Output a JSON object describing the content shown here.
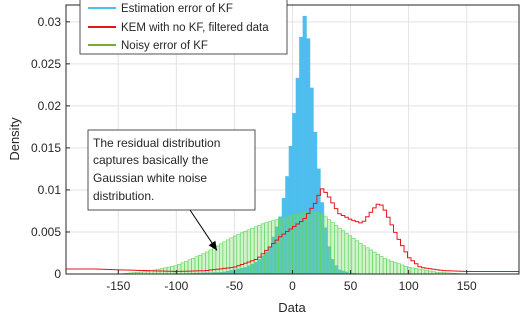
{
  "chart_data": {
    "type": "bar",
    "xlabel": "Data",
    "ylabel": "Density",
    "xlim": [
      -195,
      195
    ],
    "ylim": [
      0,
      0.032
    ],
    "xticks": [
      -150,
      -100,
      -50,
      0,
      50,
      100,
      150
    ],
    "yticks": [
      0,
      0.005,
      0.01,
      0.015,
      0.02,
      0.025,
      0.03
    ],
    "ytick_labels": [
      "0",
      "0.005",
      "0.01",
      "0.015",
      "0.02",
      "0.025",
      "0.03"
    ],
    "grid": true,
    "legend_position": "top-left",
    "annotation": {
      "lines": [
        "The residual distribution",
        "captures basically the",
        "Gaussian white noise",
        "distribution."
      ],
      "arrow_target": [
        -65,
        0.0028
      ]
    },
    "series": [
      {
        "name": "Estimation error of KF",
        "style": "filled-bars",
        "color": "#4dbeee",
        "edge": "#4dbeee",
        "bin_width": 3,
        "points": [
          [
            -195,
            0
          ],
          [
            -100,
            0
          ],
          [
            -60,
            0.0002
          ],
          [
            -40,
            0.0008
          ],
          [
            -30,
            0.0015
          ],
          [
            -20,
            0.003
          ],
          [
            -10,
            0.007
          ],
          [
            -5,
            0.011
          ],
          [
            0,
            0.017
          ],
          [
            5,
            0.024
          ],
          [
            8,
            0.029
          ],
          [
            10,
            0.031
          ],
          [
            13,
            0.029
          ],
          [
            16,
            0.023
          ],
          [
            20,
            0.016
          ],
          [
            25,
            0.009
          ],
          [
            30,
            0.004
          ],
          [
            35,
            0.0015
          ],
          [
            40,
            0.0005
          ],
          [
            50,
            0.0001
          ],
          [
            60,
            0
          ],
          [
            195,
            0
          ]
        ]
      },
      {
        "name": "Noisy error of KF",
        "style": "bars",
        "color": "#77ac30",
        "edge": "#5cd65c",
        "fill": "rgba(120,222,100,0.35)",
        "bin_width": 3,
        "points": [
          [
            -195,
            0
          ],
          [
            -150,
            0
          ],
          [
            -125,
            0.0003
          ],
          [
            -100,
            0.001
          ],
          [
            -75,
            0.0025
          ],
          [
            -50,
            0.0045
          ],
          [
            -25,
            0.006
          ],
          [
            0,
            0.007
          ],
          [
            15,
            0.0075
          ],
          [
            25,
            0.0072
          ],
          [
            40,
            0.0055
          ],
          [
            60,
            0.0035
          ],
          [
            80,
            0.0018
          ],
          [
            100,
            0.0008
          ],
          [
            125,
            0.0002
          ],
          [
            150,
            0
          ],
          [
            195,
            0
          ]
        ]
      },
      {
        "name": "KEM with no KF, filtered data",
        "style": "stairs",
        "color": "#e8141c",
        "bin_width": 3,
        "points": [
          [
            -195,
            0.0006
          ],
          [
            -170,
            0.0006
          ],
          [
            -150,
            0.0005
          ],
          [
            -100,
            0.0003
          ],
          [
            -75,
            0.0004
          ],
          [
            -50,
            0.0008
          ],
          [
            -30,
            0.0018
          ],
          [
            -10,
            0.0045
          ],
          [
            0,
            0.0055
          ],
          [
            10,
            0.0065
          ],
          [
            20,
            0.0085
          ],
          [
            25,
            0.0102
          ],
          [
            30,
            0.0095
          ],
          [
            40,
            0.0072
          ],
          [
            50,
            0.0065
          ],
          [
            60,
            0.006
          ],
          [
            70,
            0.0078
          ],
          [
            75,
            0.0085
          ],
          [
            80,
            0.0075
          ],
          [
            90,
            0.0045
          ],
          [
            100,
            0.002
          ],
          [
            110,
            0.0008
          ],
          [
            130,
            0.0004
          ],
          [
            150,
            0.0003
          ],
          [
            170,
            0.0003
          ],
          [
            195,
            0.0003
          ]
        ]
      }
    ],
    "legend": [
      "Estimation error of KF",
      "KEM with no KF, filtered data",
      "Noisy error of KF"
    ]
  }
}
